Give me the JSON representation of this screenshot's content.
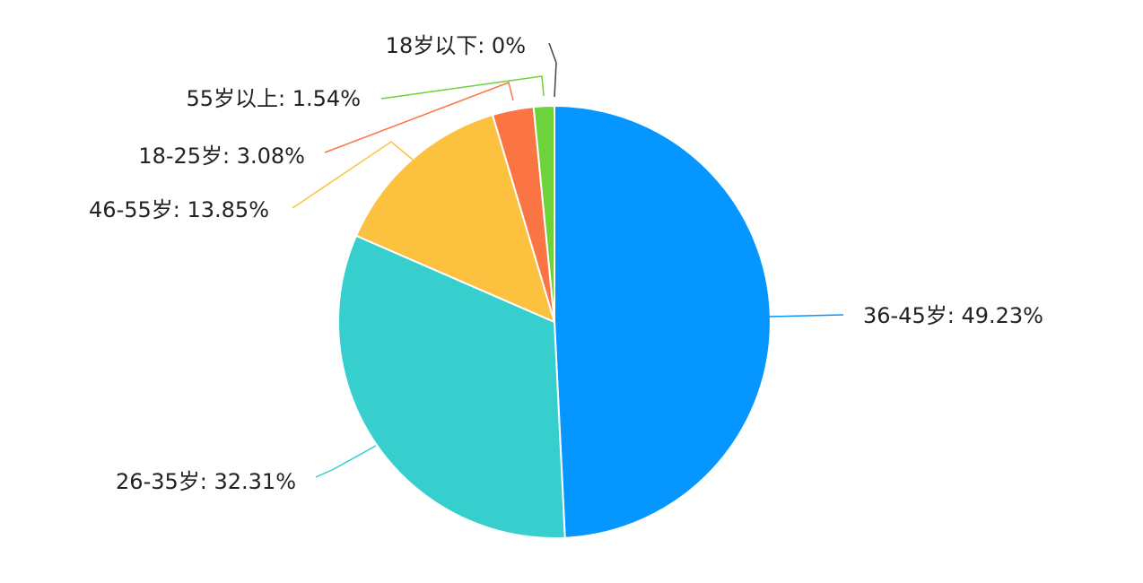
{
  "chart_data": {
    "type": "pie",
    "slices": [
      {
        "label": "36-45岁: 49.23%",
        "name": "36-45岁",
        "value": 49.23,
        "color": "#0596FF"
      },
      {
        "label": "26-35岁: 32.31%",
        "name": "26-35岁",
        "value": 32.31,
        "color": "#36CFCE"
      },
      {
        "label": "46-55岁: 13.85%",
        "name": "46-55岁",
        "value": 13.85,
        "color": "#FCC23F"
      },
      {
        "label": "18-25岁: 3.08%",
        "name": "18-25岁",
        "value": 3.08,
        "color": "#FB7444"
      },
      {
        "label": "55岁以上: 1.54%",
        "name": "55岁以上",
        "value": 1.54,
        "color": "#6CD33A"
      },
      {
        "label": "18岁以下: 0%",
        "name": "18岁以下",
        "value": 0,
        "color": "#3D4552"
      }
    ],
    "start_angle": "12 o'clock",
    "direction": "clockwise"
  }
}
